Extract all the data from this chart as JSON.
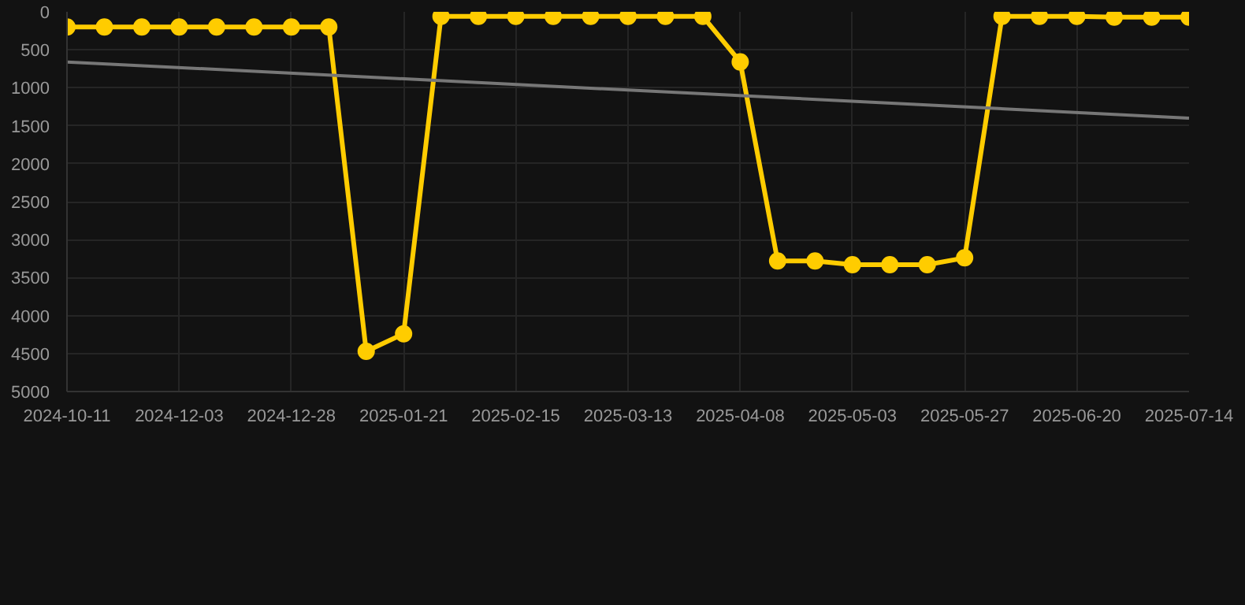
{
  "chart_data": {
    "type": "line",
    "categories": [
      "2024-10-11",
      null,
      null,
      "2024-12-03",
      null,
      null,
      "2024-12-28",
      null,
      null,
      "2025-01-21",
      null,
      null,
      "2025-02-15",
      null,
      null,
      "2025-03-13",
      null,
      null,
      "2025-04-08",
      null,
      null,
      "2025-05-03",
      null,
      null,
      "2025-05-27",
      null,
      null,
      "2025-06-20",
      null,
      null,
      "2025-07-14"
    ],
    "series": [
      {
        "color": "#ffcc00",
        "marker": "circle",
        "values": [
          200,
          200,
          200,
          200,
          200,
          200,
          200,
          200,
          4470,
          4240,
          60,
          60,
          60,
          60,
          60,
          60,
          60,
          60,
          660,
          3280,
          3280,
          3330,
          3330,
          3330,
          3240,
          60,
          60,
          60,
          70,
          70,
          70
        ]
      },
      {
        "type": "line",
        "color": "#777777",
        "marker": "none",
        "values": [
          660,
          null,
          null,
          null,
          null,
          null,
          null,
          null,
          null,
          null,
          null,
          null,
          null,
          null,
          null,
          null,
          null,
          null,
          null,
          null,
          null,
          null,
          null,
          null,
          null,
          null,
          null,
          null,
          null,
          null,
          1400
        ]
      }
    ],
    "ylim": [
      5000,
      0
    ],
    "yticks": [
      0,
      500,
      1000,
      1500,
      2000,
      2500,
      3000,
      3500,
      4000,
      4500,
      5000
    ],
    "grid": true
  }
}
